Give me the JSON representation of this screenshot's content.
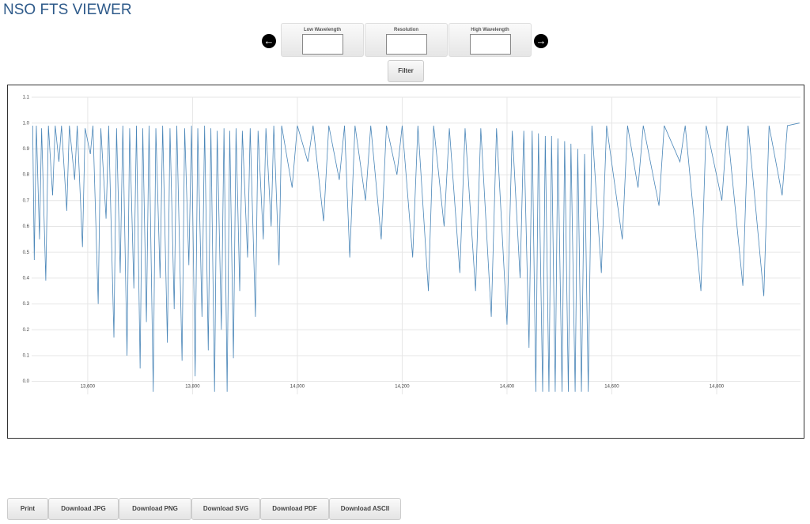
{
  "header": {
    "title": "NSO FTS VIEWER"
  },
  "controls": {
    "fields": [
      "Low Wavelength",
      "Resolution",
      "High Wavelength"
    ],
    "filter": "Filter"
  },
  "chart_data": {
    "type": "line",
    "x": [
      13495,
      13498,
      13502,
      13508,
      13512,
      13520,
      13525,
      13533,
      13538,
      13545,
      13550,
      13560,
      13565,
      13575,
      13580,
      13590,
      13595,
      13605,
      13610,
      13620,
      13625,
      13635,
      13640,
      13650,
      13655,
      13662,
      13667,
      13675,
      13680,
      13688,
      13693,
      13700,
      13705,
      13712,
      13717,
      13725,
      13730,
      13738,
      13743,
      13752,
      13757,
      13765,
      13770,
      13780,
      13785,
      13793,
      13798,
      13805,
      13810,
      13818,
      13823,
      13830,
      13835,
      13842,
      13847,
      13855,
      13860,
      13866,
      13871,
      13878,
      13883,
      13890,
      13895,
      13905,
      13910,
      13920,
      13925,
      13935,
      13940,
      13950,
      13955,
      13965,
      13970,
      13990,
      14000,
      14020,
      14030,
      14050,
      14060,
      14080,
      14090,
      14100,
      14110,
      14130,
      14140,
      14160,
      14170,
      14190,
      14200,
      14220,
      14230,
      14250,
      14260,
      14280,
      14290,
      14310,
      14320,
      14340,
      14350,
      14370,
      14380,
      14400,
      14410,
      14425,
      14432,
      14442,
      14448,
      14455,
      14460,
      14468,
      14473,
      14480,
      14485,
      14492,
      14497,
      14505,
      14510,
      14517,
      14522,
      14530,
      14535,
      14542,
      14548,
      14555,
      14562,
      14580,
      14590,
      14620,
      14630,
      14650,
      14660,
      14690,
      14700,
      14730,
      14740,
      14770,
      14780,
      14810,
      14820,
      14850,
      14860,
      14890,
      14900,
      14925,
      14935,
      14958
    ],
    "series": [
      {
        "color": "#4a86b8",
        "values": [
          0.99,
          0.47,
          0.99,
          0.55,
          0.98,
          0.39,
          0.99,
          0.72,
          0.99,
          0.85,
          0.99,
          0.66,
          0.99,
          0.78,
          0.99,
          0.52,
          0.98,
          0.88,
          0.99,
          0.3,
          0.98,
          0.63,
          0.99,
          0.17,
          0.98,
          0.42,
          0.99,
          0.1,
          0.98,
          0.36,
          0.99,
          0.05,
          0.98,
          0.23,
          0.99,
          -0.04,
          0.98,
          0.4,
          0.99,
          0.15,
          0.98,
          0.28,
          0.99,
          0.08,
          0.98,
          0.45,
          0.99,
          0.02,
          0.98,
          0.25,
          0.99,
          0.12,
          0.98,
          -0.04,
          0.97,
          0.2,
          0.98,
          -0.04,
          0.97,
          0.09,
          0.98,
          0.35,
          0.97,
          0.48,
          0.98,
          0.25,
          0.97,
          0.55,
          0.98,
          0.6,
          0.99,
          0.45,
          0.99,
          0.75,
          0.99,
          0.85,
          0.99,
          0.62,
          0.99,
          0.78,
          0.99,
          0.48,
          0.99,
          0.7,
          0.99,
          0.55,
          0.99,
          0.8,
          0.99,
          0.48,
          0.99,
          0.35,
          0.99,
          0.6,
          0.98,
          0.42,
          0.98,
          0.35,
          0.98,
          0.25,
          0.98,
          0.22,
          0.97,
          0.4,
          0.97,
          0.13,
          0.97,
          -0.04,
          0.96,
          -0.04,
          0.95,
          -0.04,
          0.95,
          -0.04,
          0.94,
          -0.04,
          0.93,
          -0.04,
          0.92,
          -0.04,
          0.9,
          -0.04,
          0.88,
          -0.04,
          0.99,
          0.42,
          0.99,
          0.55,
          0.99,
          0.75,
          0.99,
          0.68,
          0.99,
          0.85,
          0.99,
          0.35,
          0.99,
          0.7,
          0.99,
          0.37,
          0.99,
          0.33,
          0.99,
          0.72,
          0.99,
          1.0
        ]
      }
    ],
    "xlim": [
      13493,
      14960
    ],
    "ylim": [
      -0.05,
      1.1
    ],
    "xticks": [
      {
        "value": 13600,
        "label": "13,600"
      },
      {
        "value": 13800,
        "label": "13,800"
      },
      {
        "value": 14000,
        "label": "14,000"
      },
      {
        "value": 14200,
        "label": "14,200"
      },
      {
        "value": 14400,
        "label": "14,400"
      },
      {
        "value": 14600,
        "label": "14,600"
      },
      {
        "value": 14800,
        "label": "14,800"
      }
    ],
    "yticks": [
      {
        "value": 0,
        "label": "0.0"
      },
      0.1,
      0.2,
      0.3,
      0.4,
      0.5,
      0.6,
      0.7,
      0.8,
      0.9,
      {
        "value": 1,
        "label": "1.0"
      },
      1.1
    ],
    "grid": true
  },
  "downloads": [
    "Print",
    "Download JPG",
    "Download PNG",
    "Download SVG",
    "Download PDF",
    "Download ASCII"
  ]
}
